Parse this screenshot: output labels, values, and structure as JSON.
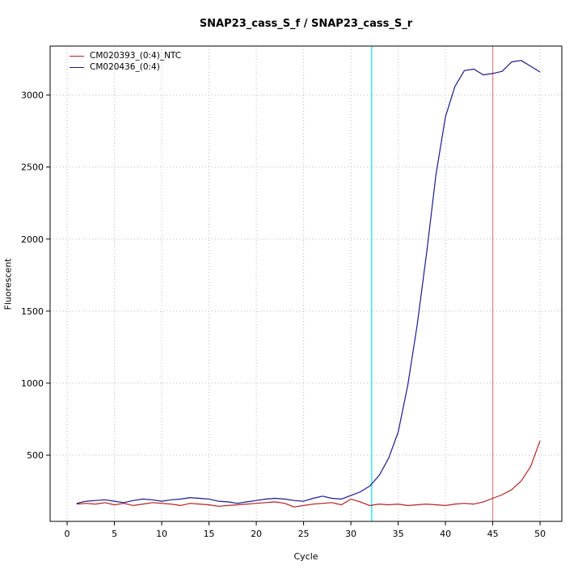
{
  "title": "SNAP23_cass_S_f / SNAP23_cass_S_r",
  "xlabel": "Cycle",
  "ylabel": "Fluorescent",
  "colors": {
    "series_ntc": "#b22222",
    "series_sample": "#1a1a8c",
    "threshold_cyan": "#00e5ee",
    "threshold_red": "#e08080",
    "grid": "#b9b9b9",
    "axis": "#000000",
    "background": "#ffffff"
  },
  "chart_data": {
    "type": "line",
    "title": "SNAP23_cass_S_f / SNAP23_cass_S_r",
    "xlabel": "Cycle",
    "ylabel": "Fluorescent",
    "xlim": [
      -1.8,
      52.3
    ],
    "ylim": [
      40,
      3340
    ],
    "x_ticks": [
      0,
      5,
      10,
      15,
      20,
      25,
      30,
      35,
      40,
      45,
      50
    ],
    "y_ticks": [
      500,
      1000,
      1500,
      2000,
      2500,
      3000
    ],
    "grid": "dotted",
    "legend_position": "top-left",
    "x": [
      1,
      2,
      3,
      4,
      5,
      6,
      7,
      8,
      9,
      10,
      11,
      12,
      13,
      14,
      15,
      16,
      17,
      18,
      19,
      20,
      21,
      22,
      23,
      24,
      25,
      26,
      27,
      28,
      29,
      30,
      31,
      32,
      33,
      34,
      35,
      36,
      37,
      38,
      39,
      40,
      41,
      42,
      43,
      44,
      45,
      46,
      47,
      48,
      49,
      50
    ],
    "series": [
      {
        "name": "CM020393_(0:4)_NTC",
        "color": "#b22222",
        "values": [
          160,
          165,
          160,
          170,
          155,
          165,
          150,
          160,
          170,
          165,
          160,
          150,
          165,
          160,
          155,
          145,
          150,
          155,
          160,
          165,
          170,
          175,
          165,
          140,
          150,
          160,
          165,
          170,
          155,
          195,
          175,
          150,
          160,
          155,
          160,
          150,
          155,
          160,
          155,
          150,
          160,
          165,
          160,
          175,
          200,
          225,
          260,
          320,
          420,
          600
        ]
      },
      {
        "name": "CM020436_(0:4)",
        "color": "#1a1a8c",
        "values": [
          165,
          180,
          185,
          190,
          180,
          170,
          185,
          195,
          190,
          180,
          190,
          195,
          205,
          200,
          195,
          180,
          175,
          165,
          175,
          185,
          195,
          200,
          195,
          185,
          180,
          200,
          215,
          200,
          195,
          220,
          245,
          285,
          360,
          480,
          660,
          980,
          1400,
          1900,
          2450,
          2850,
          3060,
          3170,
          3180,
          3140,
          3150,
          3165,
          3230,
          3240,
          3200,
          3160
        ]
      }
    ],
    "vlines": [
      {
        "x": 32.2,
        "color": "#00e5ee"
      },
      {
        "x": 45,
        "color": "#e08080"
      }
    ]
  }
}
